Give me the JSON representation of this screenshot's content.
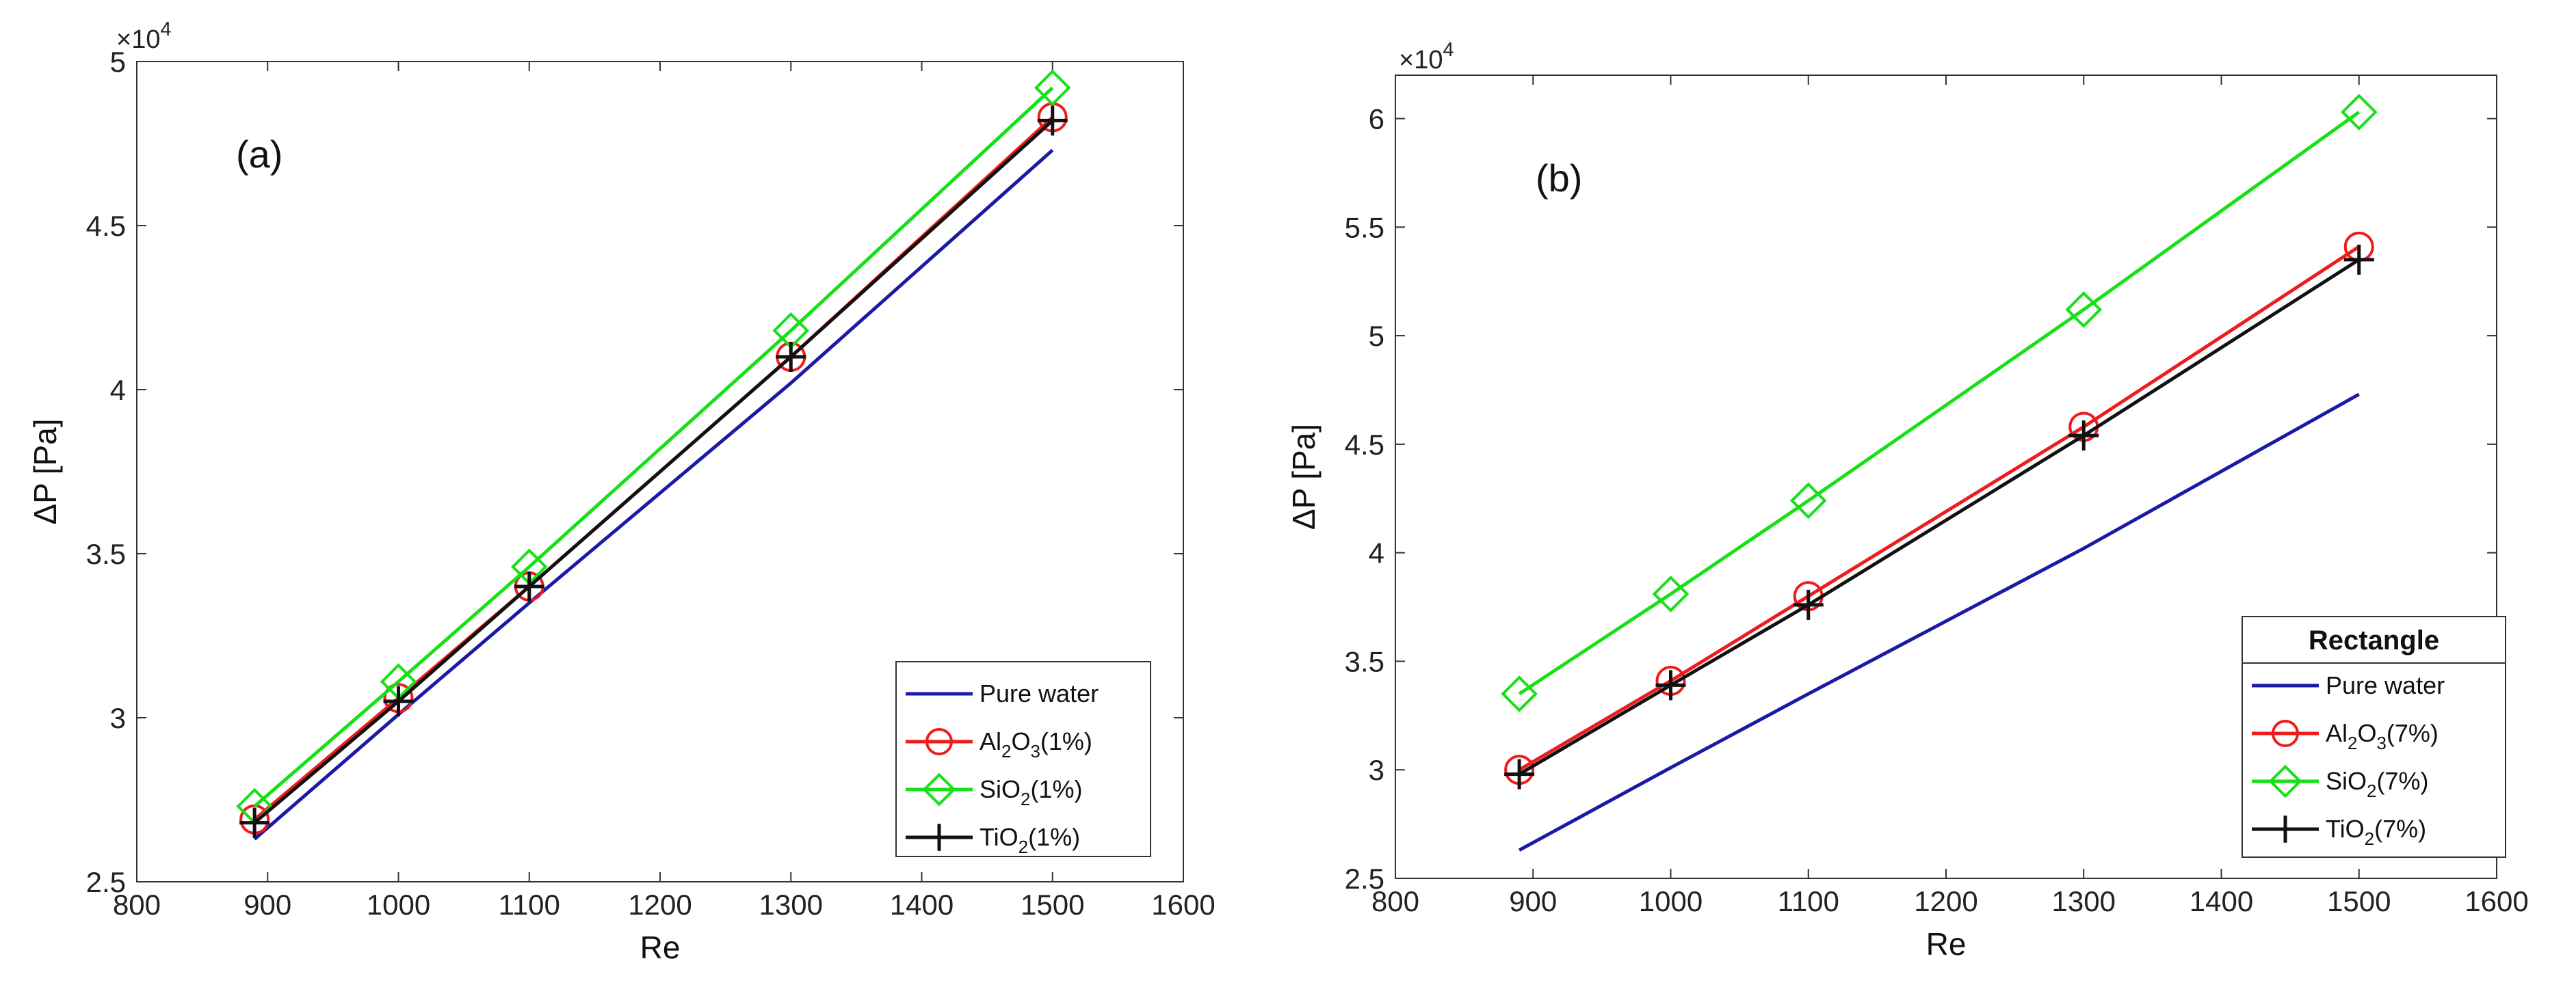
{
  "colors": {
    "pure_water": "#1a1aa6",
    "al2o3": "#ee1c1c",
    "sio2": "#16e016",
    "tio2": "#111111",
    "axis": "#333333"
  },
  "chart_data": [
    {
      "type": "line",
      "panel_label": "(a)",
      "xlabel": "Re",
      "ylabel": "ΔP [Pa]",
      "exponent": {
        "base": "×10",
        "power": "4"
      },
      "xlim": [
        800,
        1600
      ],
      "ylim": [
        2.5,
        5
      ],
      "xticks": [
        "800",
        "900",
        "1000",
        "1100",
        "1200",
        "1300",
        "1400",
        "1500",
        "1600"
      ],
      "yticks": [
        "2.5",
        "3",
        "3.5",
        "4",
        "4.5",
        "5"
      ],
      "x": [
        890,
        1000,
        1100,
        1300,
        1500
      ],
      "legend_title": "",
      "legend_position": "bottom-right",
      "series": [
        {
          "key": "pure_water",
          "label": "Pure water",
          "sub": "",
          "suffix": "",
          "marker": "none",
          "values": [
            2.63,
            3.01,
            3.35,
            4.02,
            4.73
          ]
        },
        {
          "key": "al2o3",
          "label": "Al",
          "sub": "2",
          "mid": "O",
          "sub2": "3",
          "suffix": "(1%)",
          "marker": "circle",
          "values": [
            2.69,
            3.06,
            3.4,
            4.1,
            4.83
          ]
        },
        {
          "key": "sio2",
          "label": "SiO",
          "sub": "2",
          "mid": "",
          "sub2": "",
          "suffix": "(1%)",
          "marker": "diamond",
          "values": [
            2.73,
            3.11,
            3.46,
            4.18,
            4.92
          ]
        },
        {
          "key": "tio2",
          "label": "TiO",
          "sub": "2",
          "mid": "",
          "sub2": "",
          "suffix": "(1%)",
          "marker": "plus",
          "values": [
            2.68,
            3.05,
            3.4,
            4.1,
            4.82
          ]
        }
      ]
    },
    {
      "type": "line",
      "panel_label": "(b)",
      "xlabel": "Re",
      "ylabel": "ΔP [Pa]",
      "exponent": {
        "base": "×10",
        "power": "4"
      },
      "xlim": [
        800,
        1600
      ],
      "ylim": [
        2.5,
        6.2
      ],
      "xticks": [
        "800",
        "900",
        "1000",
        "1100",
        "1200",
        "1300",
        "1400",
        "1500",
        "1600"
      ],
      "yticks": [
        "2.5",
        "3",
        "3.5",
        "4",
        "4.5",
        "5",
        "5.5",
        "6"
      ],
      "x": [
        890,
        1000,
        1100,
        1300,
        1500
      ],
      "legend_title": "Rectangle",
      "legend_position": "bottom-right",
      "series": [
        {
          "key": "pure_water",
          "label": "Pure water",
          "sub": "",
          "suffix": "",
          "marker": "none",
          "values": [
            2.63,
            3.01,
            3.35,
            4.02,
            4.73
          ]
        },
        {
          "key": "al2o3",
          "label": "Al",
          "sub": "2",
          "mid": "O",
          "sub2": "3",
          "suffix": "(7%)",
          "marker": "circle",
          "values": [
            3.0,
            3.41,
            3.8,
            4.58,
            5.41
          ]
        },
        {
          "key": "sio2",
          "label": "SiO",
          "sub": "2",
          "mid": "",
          "sub2": "",
          "suffix": "(7%)",
          "marker": "diamond",
          "values": [
            3.35,
            3.81,
            4.24,
            5.12,
            6.03
          ]
        },
        {
          "key": "tio2",
          "label": "TiO",
          "sub": "2",
          "mid": "",
          "sub2": "",
          "suffix": "(7%)",
          "marker": "plus",
          "values": [
            2.98,
            3.39,
            3.76,
            4.54,
            5.35
          ]
        }
      ]
    }
  ]
}
